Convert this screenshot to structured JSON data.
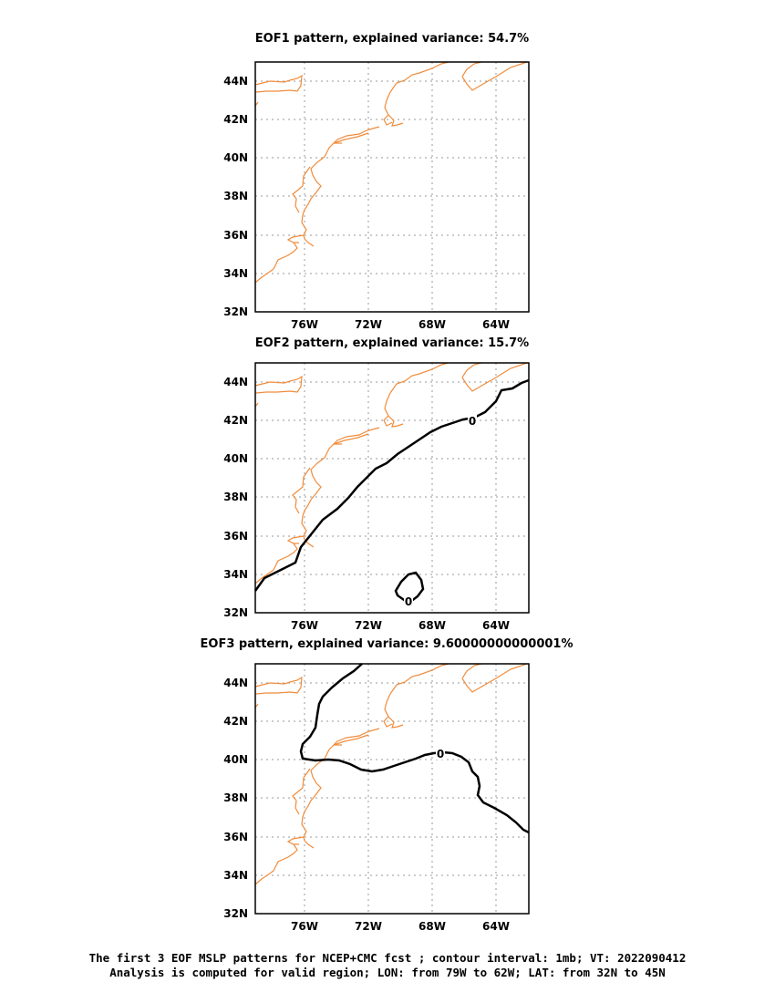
{
  "panels": [
    {
      "title": "EOF1 pattern, explained variance: 54.7%",
      "contour_labels": []
    },
    {
      "title": "EOF2 pattern, explained variance: 15.7%",
      "contour_labels": [
        "0",
        "0"
      ]
    },
    {
      "title": "EOF3 pattern, explained variance: 9.60000000000001%",
      "contour_labels": [
        "0"
      ]
    }
  ],
  "axes": {
    "lon_ticks": [
      "76W",
      "72W",
      "68W",
      "64W"
    ],
    "lat_ticks": [
      "44N",
      "42N",
      "40N",
      "38N",
      "36N",
      "34N",
      "32N"
    ]
  },
  "caption": {
    "line1": "The first 3 EOF MSLP patterns for NCEP+CMC fcst ; contour interval: 1mb; VT: 2022090412",
    "line2": "Analysis is computed for valid region; LON: from 79W to 62W; LAT: from 32N to 45N"
  },
  "colors": {
    "coastline": "#f08c3c",
    "contour": "#000000",
    "grid": "#999999",
    "frame": "#000000"
  }
}
